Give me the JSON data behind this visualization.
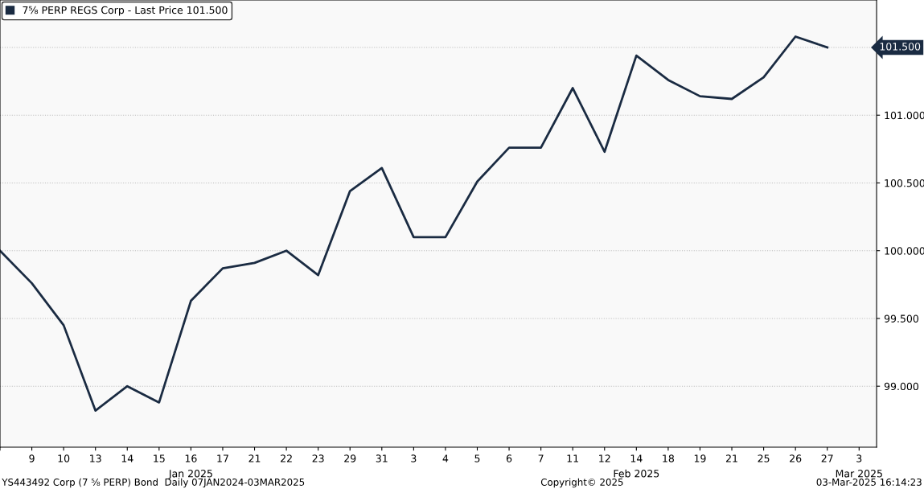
{
  "chart_data": {
    "type": "line",
    "categories": [
      null,
      "9",
      "10",
      "13",
      "14",
      "15",
      "16",
      "17",
      "21",
      "22",
      "23",
      "29",
      "31",
      "3",
      "4",
      "5",
      "6",
      "7",
      "11",
      "12",
      "14",
      "18",
      "19",
      "21",
      "25",
      "26",
      "27",
      "3"
    ],
    "series": [
      {
        "name": "7⅝ PERP REGS Corp - Last Price 101.500",
        "color": "#1a2b42",
        "values": [
          100.0,
          99.76,
          99.45,
          98.82,
          99.0,
          98.88,
          99.63,
          99.87,
          99.91,
          100.0,
          99.82,
          100.44,
          100.61,
          100.1,
          100.1,
          100.51,
          100.76,
          100.76,
          101.2,
          100.73,
          101.44,
          101.26,
          101.14,
          101.12,
          101.28,
          101.58,
          101.5,
          null
        ]
      }
    ],
    "ylim": [
      98.55,
      101.85
    ],
    "yticks": [
      {
        "value": 99,
        "label": "99.000"
      },
      {
        "value": 99.5,
        "label": "99.500"
      },
      {
        "value": 100,
        "label": "100.000"
      },
      {
        "value": 100.5,
        "label": "100.500"
      },
      {
        "value": 101,
        "label": "101.000"
      },
      {
        "value": 101.5,
        "label": null
      }
    ],
    "grid": "y",
    "legend": "top left",
    "marker": "none",
    "line_style": "solid",
    "annotations": [
      "101.500",
      "Jan 2025",
      "Feb 2025",
      "Mar 2025",
      "YS443492 Corp (7 ⅝ PERP) Bond  Daily 07JAN2024-03MAR2025",
      "Copyright© 2025",
      "03-Mar-2025 16:14:23"
    ]
  }
}
